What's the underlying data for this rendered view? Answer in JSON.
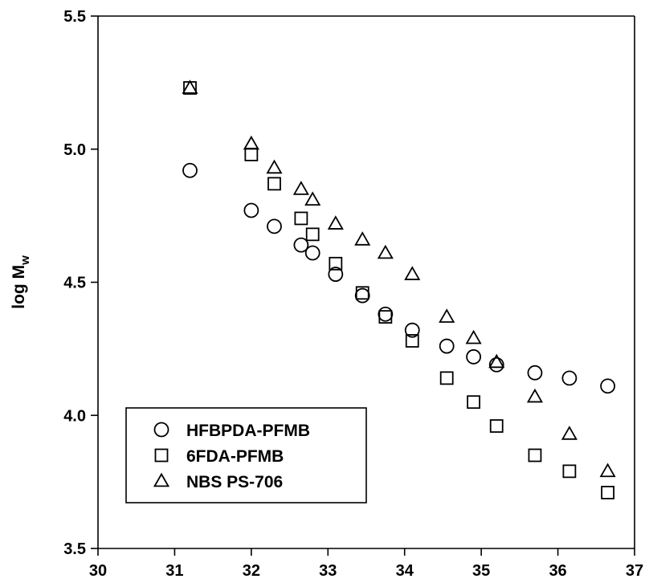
{
  "chart_data": {
    "type": "scatter",
    "title": "",
    "xlabel": "",
    "ylabel": "log M",
    "ylabel_subscript": "w",
    "xlim": [
      30,
      37
    ],
    "ylim": [
      3.5,
      5.5
    ],
    "xticks": [
      "30",
      "31",
      "32",
      "33",
      "34",
      "35",
      "36",
      "37"
    ],
    "yticks": [
      "3.5",
      "4.0",
      "4.5",
      "5.0",
      "5.5"
    ],
    "grid": false,
    "legend_position": "bottom-left",
    "series": [
      {
        "name": "HFBPDA-PFMB",
        "marker": "circle",
        "points": [
          [
            31.2,
            4.92
          ],
          [
            32.0,
            4.77
          ],
          [
            32.3,
            4.71
          ],
          [
            32.65,
            4.64
          ],
          [
            32.8,
            4.61
          ],
          [
            33.1,
            4.53
          ],
          [
            33.45,
            4.45
          ],
          [
            33.75,
            4.38
          ],
          [
            34.1,
            4.32
          ],
          [
            34.55,
            4.26
          ],
          [
            34.9,
            4.22
          ],
          [
            35.2,
            4.19
          ],
          [
            35.7,
            4.16
          ],
          [
            36.15,
            4.14
          ],
          [
            36.65,
            4.11
          ]
        ]
      },
      {
        "name": "6FDA-PFMB",
        "marker": "square",
        "points": [
          [
            31.2,
            5.23
          ],
          [
            32.0,
            4.98
          ],
          [
            32.3,
            4.87
          ],
          [
            32.65,
            4.74
          ],
          [
            32.8,
            4.68
          ],
          [
            33.1,
            4.57
          ],
          [
            33.45,
            4.46
          ],
          [
            33.75,
            4.37
          ],
          [
            34.1,
            4.28
          ],
          [
            34.55,
            4.14
          ],
          [
            34.9,
            4.05
          ],
          [
            35.2,
            3.96
          ],
          [
            35.7,
            3.85
          ],
          [
            36.15,
            3.79
          ],
          [
            36.65,
            3.71
          ]
        ]
      },
      {
        "name": "NBS PS-706",
        "marker": "triangle",
        "points": [
          [
            31.2,
            5.23
          ],
          [
            32.0,
            5.02
          ],
          [
            32.3,
            4.93
          ],
          [
            32.65,
            4.85
          ],
          [
            32.8,
            4.81
          ],
          [
            33.1,
            4.72
          ],
          [
            33.45,
            4.66
          ],
          [
            33.75,
            4.61
          ],
          [
            34.1,
            4.53
          ],
          [
            34.55,
            4.37
          ],
          [
            34.9,
            4.29
          ],
          [
            35.2,
            4.2
          ],
          [
            35.7,
            4.07
          ],
          [
            36.15,
            3.93
          ],
          [
            36.65,
            3.79
          ]
        ]
      }
    ]
  }
}
